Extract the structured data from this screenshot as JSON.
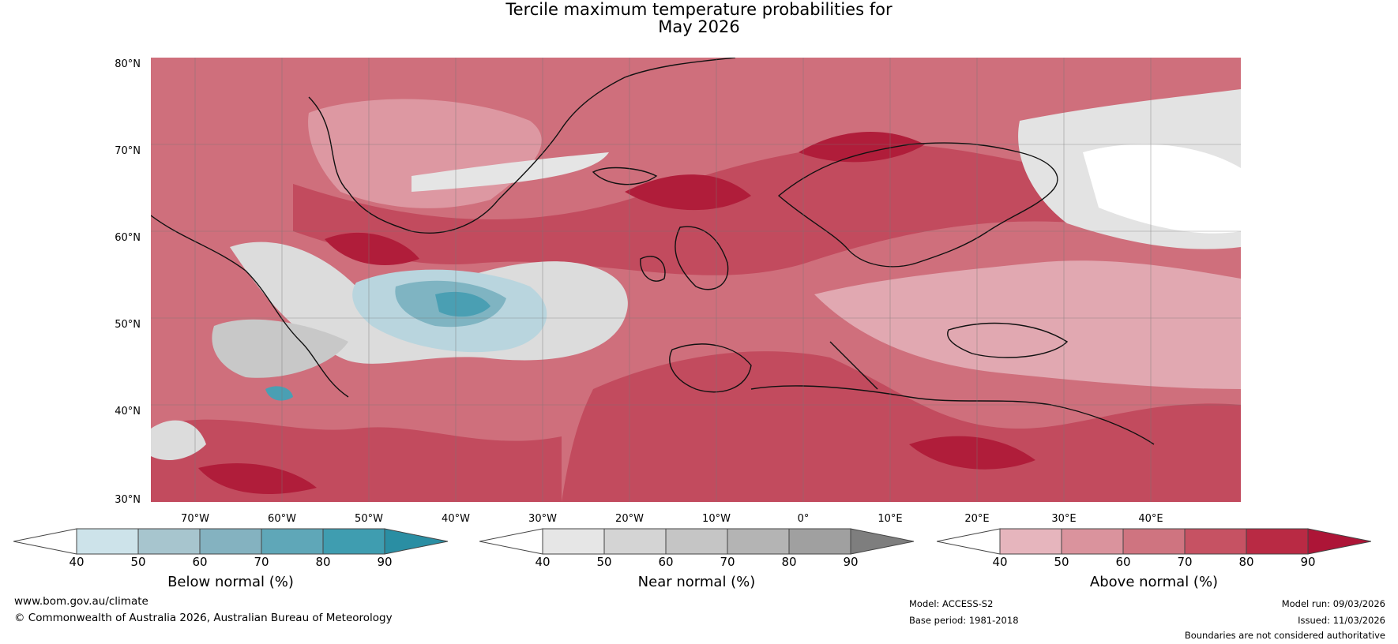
{
  "title": {
    "line1": "Tercile maximum temperature probabilities for",
    "line2": "May 2026"
  },
  "map": {
    "lat_labels": [
      "80°N",
      "70°N",
      "60°N",
      "50°N",
      "40°N",
      "30°N"
    ],
    "lon_labels": [
      "70°W",
      "60°W",
      "50°W",
      "40°W",
      "30°W",
      "20°W",
      "10°W",
      "0°",
      "10°E",
      "20°E",
      "30°E",
      "40°E"
    ]
  },
  "colorbars": [
    {
      "title": "Below normal (%)",
      "ticks": [
        "40",
        "50",
        "60",
        "70",
        "80",
        "90"
      ],
      "colors": [
        "#ffffff",
        "#cde3ea",
        "#a7c5ce",
        "#84b2c0",
        "#5fa7b8",
        "#3f9db0",
        "#2a8ea3"
      ]
    },
    {
      "title": "Near normal (%)",
      "ticks": [
        "40",
        "50",
        "60",
        "70",
        "80",
        "90"
      ],
      "colors": [
        "#ffffff",
        "#e6e6e6",
        "#d4d4d4",
        "#c5c5c5",
        "#b4b4b4",
        "#a0a0a0",
        "#7e7e7e"
      ]
    },
    {
      "title": "Above normal (%)",
      "ticks": [
        "40",
        "50",
        "60",
        "70",
        "80",
        "90"
      ],
      "colors": [
        "#ffffff",
        "#e6b5bd",
        "#da939d",
        "#cf7480",
        "#c65263",
        "#b92a44",
        "#ad1537"
      ]
    }
  ],
  "footer": {
    "website": "www.bom.gov.au/climate",
    "copyright": "© Commonwealth of Australia 2026, Australian Bureau of Meteorology",
    "model": "Model: ACCESS-S2",
    "base_period": "Base period: 1981-2018",
    "model_run": "Model run: 09/03/2026",
    "issued": "Issued: 11/03/2026",
    "disclaimer": "Boundaries are not considered authoritative"
  }
}
